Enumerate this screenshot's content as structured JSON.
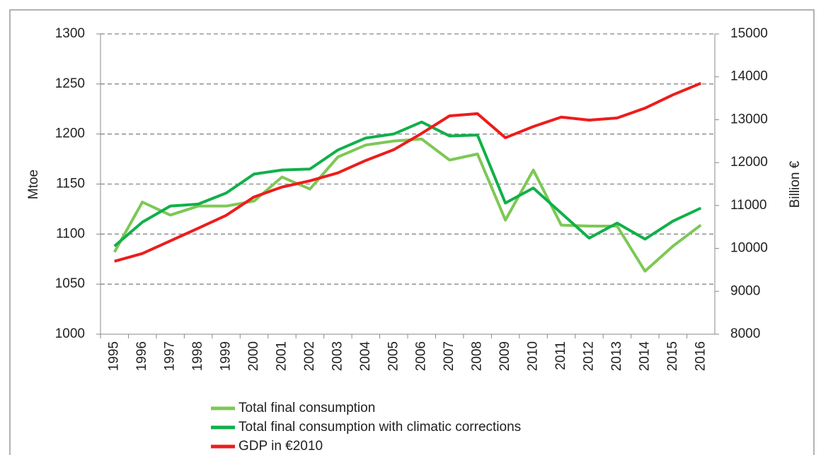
{
  "chart_data": {
    "type": "line",
    "categories": [
      "1995",
      "1996",
      "1997",
      "1998",
      "1999",
      "2000",
      "2001",
      "2002",
      "2003",
      "2004",
      "2005",
      "2006",
      "2007",
      "2008",
      "2009",
      "2010",
      "2011",
      "2012",
      "2013",
      "2014",
      "2015",
      "2016"
    ],
    "ylabel": "Mtoe",
    "y2label": "Billion €",
    "ylim": [
      1000,
      1300
    ],
    "yticks": [
      1000,
      1050,
      1100,
      1150,
      1200,
      1250,
      1300
    ],
    "y2lim": [
      8000,
      15000
    ],
    "y2ticks": [
      8000,
      9000,
      10000,
      11000,
      12000,
      13000,
      14000,
      15000
    ],
    "grid": true,
    "series": [
      {
        "name": "Total final consumption",
        "color": "#7dc855",
        "values": [
          1082,
          1132,
          1119,
          1128,
          1128,
          1133,
          1157,
          1145,
          1177,
          1189,
          1193,
          1195,
          1174,
          1180,
          1114,
          1164,
          1109,
          1108,
          1108,
          1063,
          1088,
          1109
        ]
      },
      {
        "name": "Total final consumption with climatic corrections",
        "color": "#10b04a",
        "values": [
          1088,
          1112,
          1128,
          1130,
          1141,
          1160,
          1164,
          1165,
          1184,
          1196,
          1200,
          1212,
          1198,
          1199,
          1131,
          1146,
          1121,
          1096,
          1111,
          1095,
          1113,
          1126
        ]
      },
      {
        "name": "GDP in €2010",
        "color": "#ee1c1c",
        "axis": "y2",
        "values": [
          9700,
          9880,
          10175,
          10470,
          10770,
          11200,
          11430,
          11575,
          11760,
          12050,
          12300,
          12680,
          13090,
          13140,
          12580,
          12840,
          13060,
          12990,
          13040,
          13270,
          13580,
          13850
        ]
      }
    ]
  }
}
